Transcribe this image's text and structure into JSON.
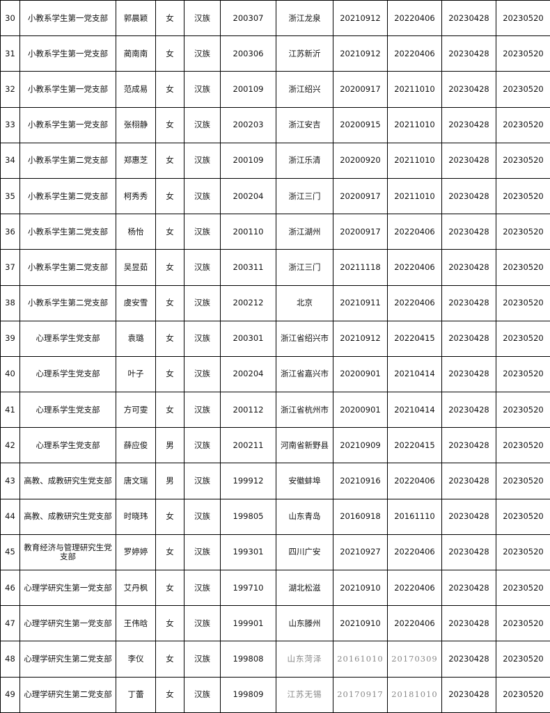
{
  "table": {
    "rows": [
      [
        "30",
        "小教系学生第一党支部",
        "郭晨颖",
        "女",
        "汉族",
        "200307",
        "浙江龙泉",
        "20210912",
        "20220406",
        "20230428",
        "20230520"
      ],
      [
        "31",
        "小教系学生第一党支部",
        "蔺南南",
        "女",
        "汉族",
        "200306",
        "江苏新沂",
        "20210912",
        "20220406",
        "20230428",
        "20230520"
      ],
      [
        "32",
        "小教系学生第一党支部",
        "范成易",
        "女",
        "汉族",
        "200109",
        "浙江绍兴",
        "20200917",
        "20211010",
        "20230428",
        "20230520"
      ],
      [
        "33",
        "小教系学生第一党支部",
        "张栩静",
        "女",
        "汉族",
        "200203",
        "浙江安吉",
        "20200915",
        "20211010",
        "20230428",
        "20230520"
      ],
      [
        "34",
        "小教系学生第二党支部",
        "郑惠芝",
        "女",
        "汉族",
        "200109",
        "浙江乐清",
        "20200920",
        "20211010",
        "20230428",
        "20230520"
      ],
      [
        "35",
        "小教系学生第二党支部",
        "柯秀秀",
        "女",
        "汉族",
        "200204",
        "浙江三门",
        "20200917",
        "20211010",
        "20230428",
        "20230520"
      ],
      [
        "36",
        "小教系学生第二党支部",
        "杨怡",
        "女",
        "汉族",
        "200110",
        "浙江湖州",
        "20200917",
        "20220406",
        "20230428",
        "20230520"
      ],
      [
        "37",
        "小教系学生第二党支部",
        "吴昱茹",
        "女",
        "汉族",
        "200311",
        "浙江三门",
        "20211118",
        "20220406",
        "20230428",
        "20230520"
      ],
      [
        "38",
        "小教系学生第二党支部",
        "虞安雪",
        "女",
        "汉族",
        "200212",
        "北京",
        "20210911",
        "20220406",
        "20230428",
        "20230520"
      ],
      [
        "39",
        "心理系学生党支部",
        "袁璐",
        "女",
        "汉族",
        "200301",
        "浙江省绍兴市",
        "20210912",
        "20220415",
        "20230428",
        "20230520"
      ],
      [
        "40",
        "心理系学生党支部",
        "叶子",
        "女",
        "汉族",
        "200204",
        "浙江省嘉兴市",
        "20200901",
        "20210414",
        "20230428",
        "20230520"
      ],
      [
        "41",
        "心理系学生党支部",
        "方可雯",
        "女",
        "汉族",
        "200112",
        "浙江省杭州市",
        "20200901",
        "20210414",
        "20230428",
        "20230520"
      ],
      [
        "42",
        "心理系学生党支部",
        "薛应俊",
        "男",
        "汉族",
        "200211",
        "河南省新野县",
        "20210909",
        "20220415",
        "20230428",
        "20230520"
      ],
      [
        "43",
        "高教、成教研究生党支部",
        "唐文瑞",
        "男",
        "汉族",
        "199912",
        "安徽蚌埠",
        "20210916",
        "20220406",
        "20230428",
        "20230520"
      ],
      [
        "44",
        "高教、成教研究生党支部",
        "时晓玮",
        "女",
        "汉族",
        "199805",
        "山东青岛",
        "20160918",
        "20161110",
        "20230428",
        "20230520"
      ],
      [
        "45",
        "教育经济与管理研究生党支部",
        "罗婷婷",
        "女",
        "汉族",
        "199301",
        "四川广安",
        "20210927",
        "20220406",
        "20230428",
        "20230520"
      ],
      [
        "46",
        "心理学研究生第一党支部",
        "艾丹枫",
        "女",
        "汉族",
        "199710",
        "湖北松滋",
        "20210910",
        "20220406",
        "20230428",
        "20230520"
      ],
      [
        "47",
        "心理学研究生第一党支部",
        "王伟晗",
        "女",
        "汉族",
        "199901",
        "山东滕州",
        "20210910",
        "20220406",
        "20230428",
        "20230520"
      ],
      [
        "48",
        "心理学研究生第二党支部",
        "李仪",
        "女",
        "汉族",
        "199808",
        "山东菏泽",
        "20161010",
        "20170309",
        "20230428",
        "20230520"
      ],
      [
        "49",
        "心理学研究生第二党支部",
        "丁蕾",
        "女",
        "汉族",
        "199809",
        "江苏无锡",
        "20170917",
        "20181010",
        "20230428",
        "20230520"
      ]
    ]
  }
}
